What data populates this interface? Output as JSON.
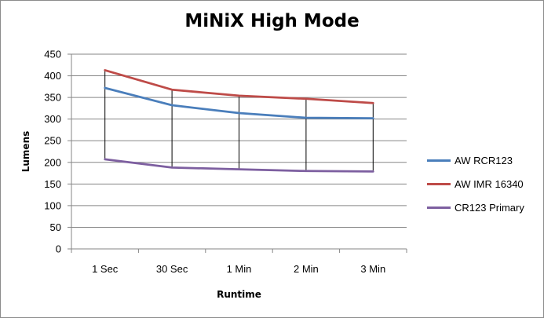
{
  "chart_data": {
    "type": "line",
    "title": "MiNiX High Mode",
    "xlabel": "Runtime",
    "ylabel": "Lumens",
    "categories": [
      "1 Sec",
      "30 Sec",
      "1 Min",
      "2 Min",
      "3 Min"
    ],
    "ylim": [
      0,
      450
    ],
    "yticks": [
      0,
      50,
      100,
      150,
      200,
      250,
      300,
      350,
      400,
      450
    ],
    "grid": "horizontal",
    "high_low_lines": true,
    "legend_position": "right",
    "series": [
      {
        "name": "AW RCR123",
        "color": "#4a7ebb",
        "values": [
          372,
          332,
          314,
          303,
          302
        ]
      },
      {
        "name": "AW IMR 16340",
        "color": "#be4b48",
        "values": [
          413,
          368,
          354,
          347,
          337
        ]
      },
      {
        "name": "CR123 Primary",
        "color": "#7d5fa0",
        "values": [
          207,
          188,
          184,
          180,
          179
        ]
      }
    ]
  }
}
